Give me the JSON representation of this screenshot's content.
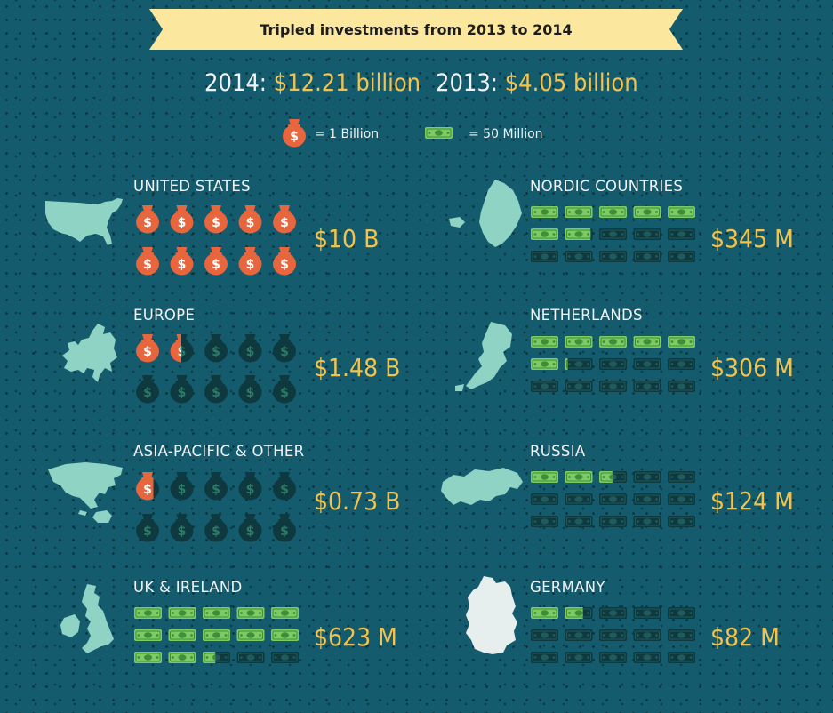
{
  "banner": "Tripled investments from 2013 to 2014",
  "totals": [
    {
      "year_label": "2014:",
      "amount": "$12.21 billion",
      "value_billion": 12.21
    },
    {
      "year_label": "2013:",
      "amount": "$4.05 billion",
      "value_billion": 4.05
    }
  ],
  "legend": {
    "bag": {
      "icon": "money-bag-icon",
      "label": "= 1 Billion"
    },
    "bill": {
      "icon": "banknote-icon",
      "label": "= 50 Million"
    }
  },
  "colors": {
    "background": "#145b6e",
    "bag": "#e8663d",
    "bill": "#7ccb63",
    "inactive": "#0e3a3f",
    "value": "#f3c34d",
    "map": "#8fd3c4",
    "banner": "#fbe79e"
  },
  "chart_data": {
    "type": "pictograph",
    "title": "Tripled investments from 2013 to 2014",
    "series": [
      {
        "name": "UNITED STATES",
        "value_label": "$10 B",
        "value": 10.0,
        "unit": "billion",
        "icon": "money-bag-icon",
        "icon_value": 1.0,
        "slots": 10,
        "map_icon": "united-states-map-icon"
      },
      {
        "name": "EUROPE",
        "value_label": "$1.48 B",
        "value": 1.48,
        "unit": "billion",
        "icon": "money-bag-icon",
        "icon_value": 1.0,
        "slots": 10,
        "map_icon": "europe-map-icon"
      },
      {
        "name": "ASIA-PACIFIC & OTHER",
        "value_label": "$0.73 B",
        "value": 0.73,
        "unit": "billion",
        "icon": "money-bag-icon",
        "icon_value": 1.0,
        "slots": 10,
        "map_icon": "asia-pacific-map-icon"
      },
      {
        "name": "UK & IRELAND",
        "value_label": "$623 M",
        "value": 623,
        "unit": "million",
        "icon": "banknote-icon",
        "icon_value": 50,
        "slots": 15,
        "map_icon": "uk-ireland-map-icon"
      },
      {
        "name": "NORDIC COUNTRIES",
        "value_label": "$345 M",
        "value": 345,
        "unit": "million",
        "icon": "banknote-icon",
        "icon_value": 50,
        "slots": 15,
        "map_icon": "nordic-map-icon"
      },
      {
        "name": "NETHERLANDS",
        "value_label": "$306 M",
        "value": 306,
        "unit": "million",
        "icon": "banknote-icon",
        "icon_value": 50,
        "slots": 15,
        "map_icon": "netherlands-map-icon"
      },
      {
        "name": "RUSSIA",
        "value_label": "$124 M",
        "value": 124,
        "unit": "million",
        "icon": "banknote-icon",
        "icon_value": 50,
        "slots": 15,
        "map_icon": "russia-map-icon"
      },
      {
        "name": "GERMANY",
        "value_label": "$82 M",
        "value": 82,
        "unit": "million",
        "icon": "banknote-icon",
        "icon_value": 50,
        "slots": 15,
        "map_icon": "germany-map-icon"
      }
    ]
  }
}
